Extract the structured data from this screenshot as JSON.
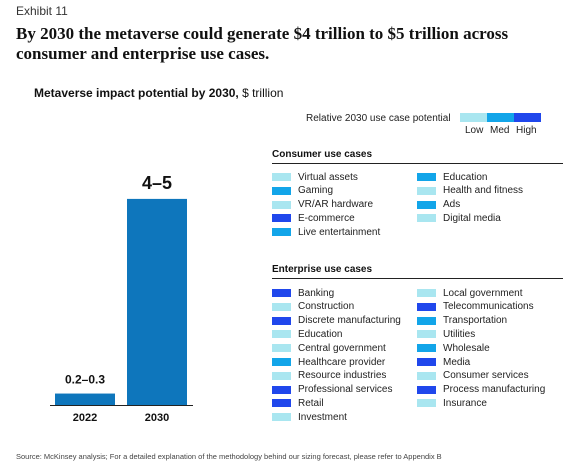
{
  "exhibit_label": "Exhibit 11",
  "headline": "By 2030 the metaverse could generate $4 trillion to $5 trillion across consumer and enterprise use cases.",
  "chart_title_bold": "Metaverse impact potential by 2030,",
  "chart_title_unit": "$ trillion",
  "colors": {
    "bar": "#0e76bc",
    "low": "#a9e6f0",
    "med": "#12a5e9",
    "high": "#2047ec",
    "axis": "#222222"
  },
  "chart_data": {
    "type": "bar",
    "categories": [
      "2022",
      "2030"
    ],
    "values": [
      0.25,
      4.5
    ],
    "ranges": [
      [
        0.2,
        0.3
      ],
      [
        4,
        5
      ]
    ],
    "data_labels": [
      "0.2–0.3",
      "4–5"
    ],
    "title": "Metaverse impact potential by 2030, $ trillion",
    "xlabel": "",
    "ylabel": "",
    "ylim": [
      0,
      5
    ],
    "grid": false
  },
  "legend": {
    "title": "Relative 2030 use case potential",
    "levels": [
      {
        "label": "Low",
        "color": "#a9e6f0"
      },
      {
        "label": "Med",
        "color": "#12a5e9"
      },
      {
        "label": "High",
        "color": "#2047ec"
      }
    ]
  },
  "consumer": {
    "title": "Consumer use cases",
    "items": [
      {
        "label": "Virtual assets",
        "level": "low"
      },
      {
        "label": "Gaming",
        "level": "med"
      },
      {
        "label": "VR/AR hardware",
        "level": "low"
      },
      {
        "label": "E-commerce",
        "level": "high"
      },
      {
        "label": "Live entertainment",
        "level": "med"
      },
      {
        "label": "Education",
        "level": "med"
      },
      {
        "label": "Health and fitness",
        "level": "low"
      },
      {
        "label": "Ads",
        "level": "med"
      },
      {
        "label": "Digital media",
        "level": "low"
      }
    ]
  },
  "enterprise": {
    "title": "Enterprise use cases",
    "items": [
      {
        "label": "Banking",
        "level": "high"
      },
      {
        "label": "Construction",
        "level": "low"
      },
      {
        "label": "Discrete manufacturing",
        "level": "high"
      },
      {
        "label": "Education",
        "level": "low"
      },
      {
        "label": "Central government",
        "level": "low"
      },
      {
        "label": "Healthcare provider",
        "level": "med"
      },
      {
        "label": "Resource industries",
        "level": "low"
      },
      {
        "label": "Professional services",
        "level": "high"
      },
      {
        "label": "Retail",
        "level": "high"
      },
      {
        "label": "Investment",
        "level": "low"
      },
      {
        "label": "Local government",
        "level": "low"
      },
      {
        "label": "Telecommunications",
        "level": "high"
      },
      {
        "label": "Transportation",
        "level": "med"
      },
      {
        "label": "Utilities",
        "level": "low"
      },
      {
        "label": "Wholesale",
        "level": "med"
      },
      {
        "label": "Media",
        "level": "high"
      },
      {
        "label": "Consumer services",
        "level": "low"
      },
      {
        "label": "Process manufacturing",
        "level": "high"
      },
      {
        "label": "Insurance",
        "level": "low"
      }
    ]
  },
  "source": "Source: McKinsey analysis; For a detailed explanation of the methodology behind our sizing forecast, please refer to Appendix B"
}
